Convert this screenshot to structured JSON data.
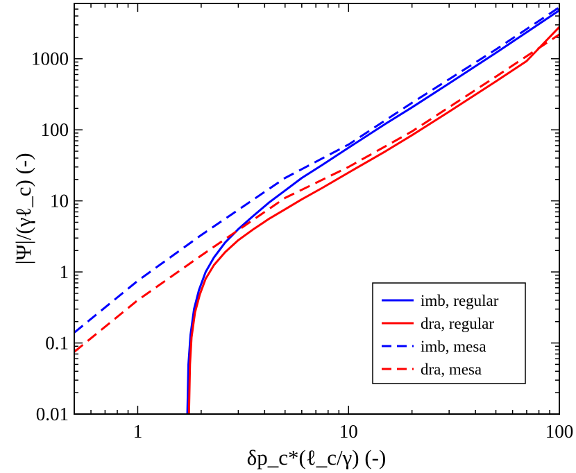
{
  "chart_data": {
    "type": "line",
    "title": "",
    "xlabel": "δp_c*(ℓ_c/γ) (-)",
    "ylabel": "|Ψ|/(γℓ_c) (-)",
    "x_scale": "log",
    "y_scale": "log",
    "xlim": [
      0.5,
      100
    ],
    "ylim": [
      0.01,
      6000
    ],
    "x_ticks": [
      1,
      10,
      100
    ],
    "x_tick_labels": [
      "1",
      "10",
      "100"
    ],
    "y_ticks": [
      0.01,
      0.1,
      1,
      10,
      100,
      1000
    ],
    "y_tick_labels": [
      "0.01",
      "0.1",
      "1",
      "10",
      "100",
      "1000"
    ],
    "grid": false,
    "legend_position": "lower-right",
    "series": [
      {
        "name": "imb, regular",
        "color": "#0000ff",
        "style": "solid",
        "x": [
          1.72,
          1.74,
          1.78,
          1.85,
          1.95,
          2.1,
          2.3,
          2.6,
          3.0,
          3.5,
          4.2,
          5,
          6,
          7.5,
          10,
          15,
          20,
          30,
          50,
          70,
          100
        ],
        "y": [
          0.01,
          0.05,
          0.13,
          0.3,
          0.55,
          1.0,
          1.6,
          2.6,
          4.0,
          6.0,
          9.5,
          14,
          21,
          32,
          56,
          122,
          207,
          450,
          1210,
          2360,
          4800
        ]
      },
      {
        "name": "dra, regular",
        "color": "#ff0000",
        "style": "solid",
        "x": [
          1.75,
          1.77,
          1.8,
          1.87,
          1.97,
          2.1,
          2.3,
          2.6,
          3.0,
          3.5,
          4.2,
          5,
          6,
          7.5,
          10,
          15,
          20,
          30,
          50,
          70,
          100
        ],
        "y": [
          0.01,
          0.05,
          0.12,
          0.27,
          0.48,
          0.8,
          1.25,
          1.9,
          2.8,
          3.9,
          5.6,
          7.6,
          10.5,
          15.2,
          25,
          50,
          84,
          180,
          480,
          930,
          2800
        ]
      },
      {
        "name": "imb, mesa",
        "color": "#0000ff",
        "style": "dashed",
        "x": [
          0.5,
          1,
          2,
          5,
          10,
          20,
          50,
          100
        ],
        "y": [
          0.14,
          0.75,
          3.3,
          21,
          62,
          240,
          1350,
          5300
        ]
      },
      {
        "name": "dra, mesa",
        "color": "#ff0000",
        "style": "dashed",
        "x": [
          0.5,
          1,
          2,
          5,
          10,
          20,
          50,
          100
        ],
        "y": [
          0.075,
          0.4,
          1.7,
          11,
          30,
          95,
          560,
          2200
        ]
      }
    ]
  }
}
